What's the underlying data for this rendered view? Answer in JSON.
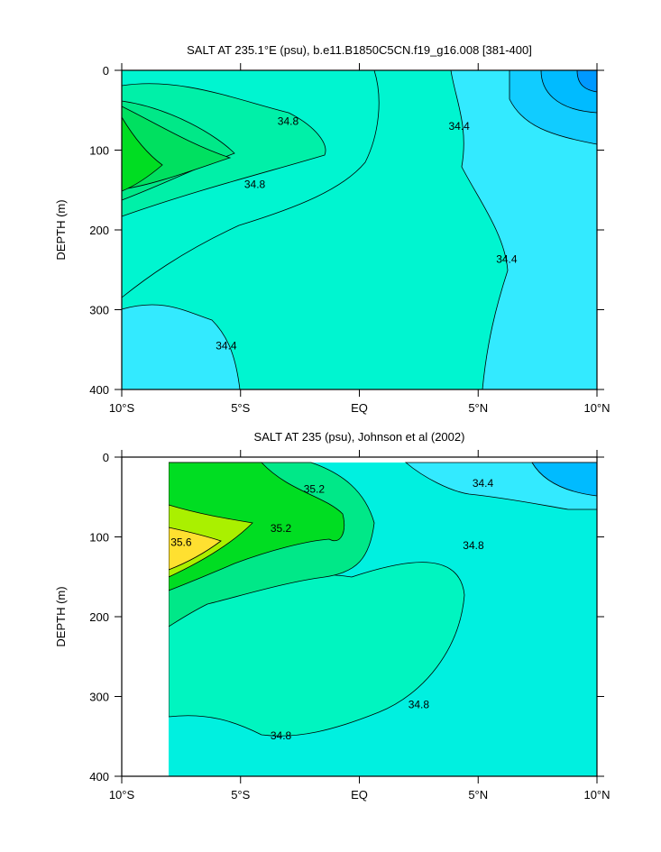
{
  "chart_data": [
    {
      "type": "contour",
      "title": "SALT AT 235.1°E (psu), b.e11.B1850C5CN.f19_g16.008 [381-400]",
      "ylabel": "DEPTH (m)",
      "xlim": [
        -10,
        10
      ],
      "ylim": [
        0,
        400
      ],
      "y_inverted": true,
      "xticks": [
        {
          "value": -10,
          "label": "10°S"
        },
        {
          "value": -5,
          "label": "5°S"
        },
        {
          "value": 0,
          "label": "EQ"
        },
        {
          "value": 5,
          "label": "5°N"
        },
        {
          "value": 10,
          "label": "10°N"
        }
      ],
      "yticks": [
        0,
        100,
        200,
        300,
        400
      ],
      "contour_labels": [
        {
          "value": 34.8,
          "x": -3.0,
          "y": 64
        },
        {
          "value": 34.8,
          "x": -4.4,
          "y": 143
        },
        {
          "value": 34.4,
          "x": 4.2,
          "y": 70
        },
        {
          "value": 34.4,
          "x": 6.2,
          "y": 237
        },
        {
          "value": 34.4,
          "x": -5.6,
          "y": 345
        }
      ]
    },
    {
      "type": "contour",
      "title": "SALT AT 235 (psu), Johnson et al (2002)",
      "ylabel": "DEPTH (m)",
      "xlim": [
        -10,
        10
      ],
      "ylim": [
        0,
        400
      ],
      "y_inverted": true,
      "xticks": [
        {
          "value": -10,
          "label": "10°S"
        },
        {
          "value": -5,
          "label": "5°S"
        },
        {
          "value": 0,
          "label": "EQ"
        },
        {
          "value": 5,
          "label": "5°N"
        },
        {
          "value": 10,
          "label": "10°N"
        }
      ],
      "yticks": [
        0,
        100,
        200,
        300,
        400
      ],
      "contour_labels": [
        {
          "value": 35.2,
          "x": -1.9,
          "y": 40
        },
        {
          "value": 35.6,
          "x": -7.5,
          "y": 107
        },
        {
          "value": 35.2,
          "x": -3.3,
          "y": 89
        },
        {
          "value": 34.8,
          "x": 4.8,
          "y": 111
        },
        {
          "value": 34.4,
          "x": 5.2,
          "y": 33
        },
        {
          "value": 34.8,
          "x": 2.5,
          "y": 310
        },
        {
          "value": 34.8,
          "x": -3.3,
          "y": 349
        }
      ]
    }
  ]
}
